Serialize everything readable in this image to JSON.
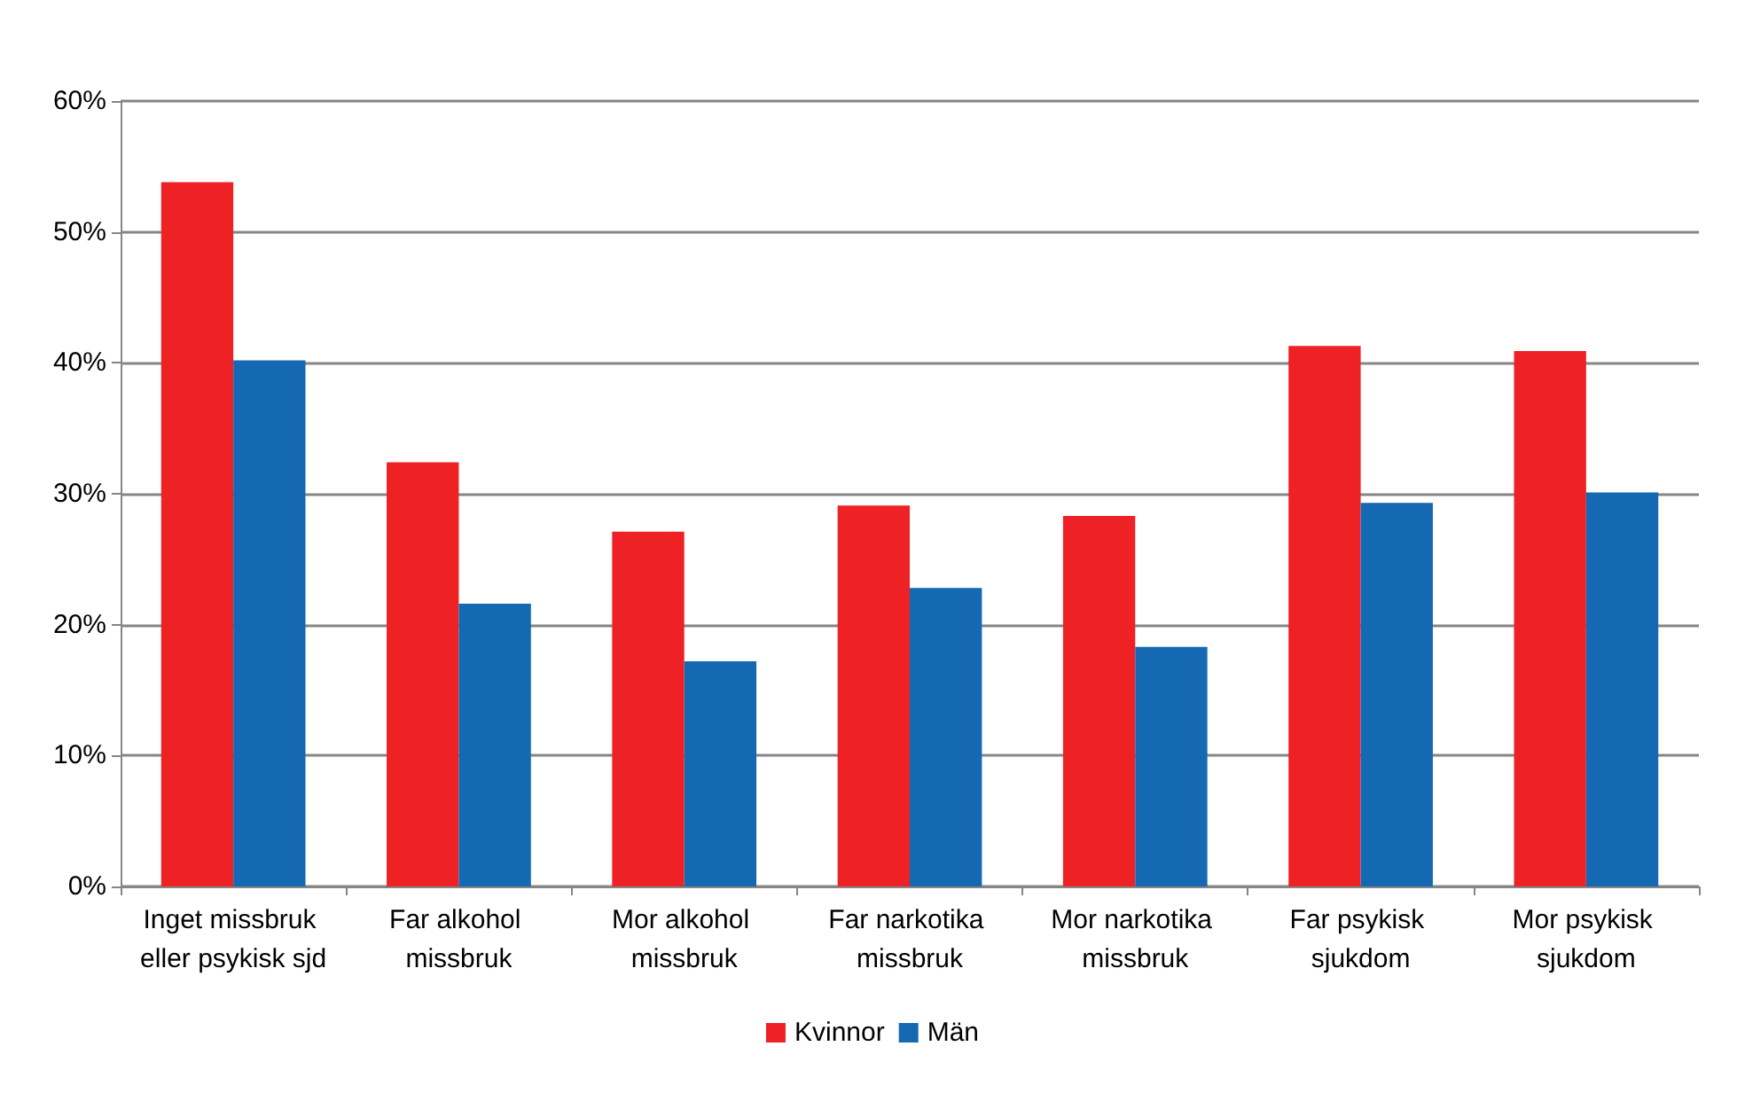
{
  "chart_data": {
    "type": "bar",
    "categories": [
      "Inget missbruk eller psykisk sjd",
      "Far alkohol missbruk",
      "Mor alkohol missbruk",
      "Far narkotika missbruk",
      "Mor narkotika missbruk",
      "Far psykisk sjukdom",
      "Mor psykisk sjukdom"
    ],
    "series": [
      {
        "name": "Kvinnor",
        "color": "#ee2224",
        "values": [
          53.8,
          32.4,
          27.1,
          29.1,
          28.3,
          41.3,
          40.9
        ]
      },
      {
        "name": "Män",
        "color": "#1569b2",
        "values": [
          40.2,
          21.6,
          17.2,
          22.8,
          18.3,
          29.3,
          30.1
        ]
      }
    ],
    "ylim": [
      0,
      60
    ],
    "yticks": [
      {
        "value": 0,
        "label": "0%"
      },
      {
        "value": 10,
        "label": "10%"
      },
      {
        "value": 20,
        "label": "20%"
      },
      {
        "value": 30,
        "label": "30%"
      },
      {
        "value": 40,
        "label": "40%"
      },
      {
        "value": 50,
        "label": "50%"
      },
      {
        "value": 60,
        "label": "60%"
      }
    ],
    "grid": "y",
    "legend": "bottom"
  }
}
